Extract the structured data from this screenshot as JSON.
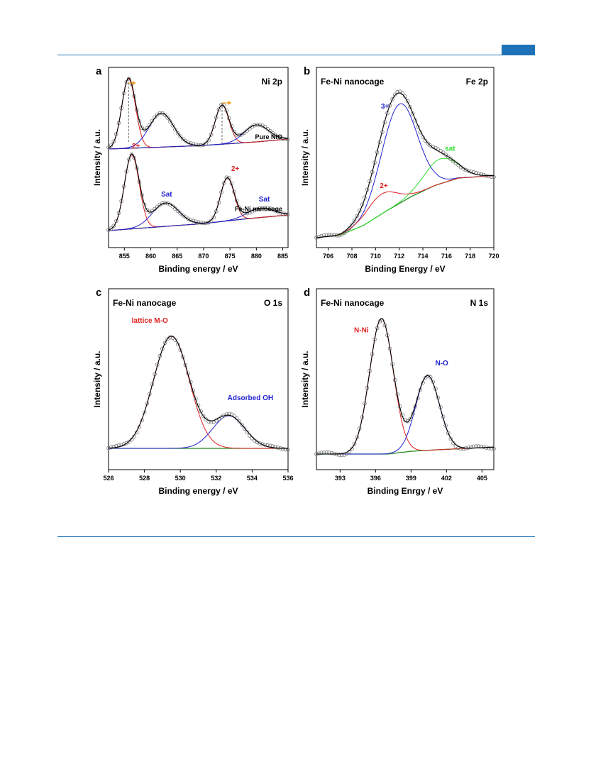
{
  "page": {
    "accent_color": "#1d72b8"
  },
  "chart_data": [
    {
      "panel_letter": "a",
      "type": "line",
      "label_left": "",
      "label_right": "Ni 2p",
      "xlabel": "Binding energy / eV",
      "ylabel": "Intensity / a.u.",
      "xlim": [
        852,
        886
      ],
      "xticks": [
        855,
        860,
        865,
        870,
        875,
        880,
        885
      ],
      "trace_labels": [
        "Fe-Ni nanocage",
        "Pure NiO"
      ],
      "peak_labels": [
        {
          "text": "2+",
          "x": 857.2,
          "trace": 0,
          "color": "#e02020"
        },
        {
          "text": "Sat",
          "x": 863,
          "trace": 0,
          "color": "#2020d0"
        },
        {
          "text": "2+",
          "x": 876,
          "trace": 0,
          "color": "#e02020"
        },
        {
          "text": "Sat",
          "x": 881.5,
          "trace": 0,
          "color": "#2020d0"
        }
      ],
      "reference_lines_ev": [
        855.8,
        873.5
      ],
      "shift_arrows_ev": [
        856.4,
        874.5
      ],
      "colors": {
        "2+": "#e02020",
        "sat": "#2020d0",
        "background": "#1f8a1f",
        "envelope": "#000000",
        "data": "#7a7a7a",
        "shift": "#f0a020"
      },
      "series": [
        {
          "trace": "Fe-Ni nanocage",
          "baseline": [
            {
              "x": 852,
              "y": 0.0
            },
            {
              "x": 860,
              "y": 0.04
            },
            {
              "x": 870,
              "y": 0.09
            },
            {
              "x": 878,
              "y": 0.15
            },
            {
              "x": 886,
              "y": 0.2
            }
          ],
          "peaks": [
            {
              "component": "2+",
              "center": 856.4,
              "height": 0.95,
              "width": 1.4
            },
            {
              "component": "Sat",
              "center": 862.8,
              "height": 0.3,
              "width": 2.5
            },
            {
              "component": "2+",
              "center": 874.5,
              "height": 0.55,
              "width": 1.3
            },
            {
              "component": "Sat",
              "center": 880.8,
              "height": 0.12,
              "width": 2.5
            }
          ]
        },
        {
          "trace": "Pure NiO",
          "baseline": [
            {
              "x": 852,
              "y": 0.0
            },
            {
              "x": 860,
              "y": 0.02
            },
            {
              "x": 870,
              "y": 0.05
            },
            {
              "x": 880,
              "y": 0.1
            },
            {
              "x": 886,
              "y": 0.14
            }
          ],
          "peaks": [
            {
              "component": "2+",
              "center": 855.8,
              "height": 0.98,
              "width": 1.3
            },
            {
              "component": "Sat",
              "center": 862.0,
              "height": 0.48,
              "width": 2.3
            },
            {
              "component": "2+",
              "center": 873.5,
              "height": 0.55,
              "width": 1.3
            },
            {
              "component": "Sat",
              "center": 880.0,
              "height": 0.24,
              "width": 2.3
            }
          ]
        }
      ]
    },
    {
      "panel_letter": "b",
      "type": "line",
      "label_left": "Fe-Ni nanocage",
      "label_right": "Fe 2p",
      "xlabel": "Binding Energy / eV",
      "ylabel": "Intensity / a.u.",
      "xlim": [
        705,
        720
      ],
      "xticks": [
        706,
        708,
        710,
        712,
        714,
        716,
        718,
        720
      ],
      "peak_labels": [
        {
          "text": "3+",
          "x": 710.8,
          "y": 1.04,
          "color": "#2020d0"
        },
        {
          "text": "sat",
          "x": 716.3,
          "y": 0.7,
          "color": "#30e030"
        },
        {
          "text": "2+",
          "x": 710.7,
          "y": 0.4,
          "color": "#e02020"
        }
      ],
      "colors": {
        "3+": "#2020d0",
        "sat": "#30e030",
        "2+": "#e02020",
        "background": "#1f8a1f",
        "envelope": "#000000",
        "data": "#7a7a7a"
      },
      "series": [
        {
          "baseline": [
            {
              "x": 705,
              "y": 0.0
            },
            {
              "x": 707,
              "y": 0.02
            },
            {
              "x": 709,
              "y": 0.1
            },
            {
              "x": 711,
              "y": 0.22
            },
            {
              "x": 713,
              "y": 0.33
            },
            {
              "x": 715,
              "y": 0.42
            },
            {
              "x": 717,
              "y": 0.48
            },
            {
              "x": 720,
              "y": 0.5
            }
          ],
          "peaks": [
            {
              "component": "3+",
              "center": 712.0,
              "height": 0.8,
              "width": 1.5
            },
            {
              "component": "sat",
              "center": 715.5,
              "height": 0.2,
              "width": 1.4
            },
            {
              "component": "2+",
              "center": 710.5,
              "height": 0.16,
              "width": 1.3
            }
          ]
        }
      ]
    },
    {
      "panel_letter": "c",
      "type": "line",
      "label_left": "Fe-Ni nanocage",
      "label_right": "O 1s",
      "xlabel": "Binding energy / eV",
      "ylabel": "Intensity / a.u.",
      "xlim": [
        526,
        536
      ],
      "xticks": [
        526,
        528,
        530,
        532,
        534,
        536
      ],
      "peak_labels": [
        {
          "text": "lattice M-O",
          "x": 528.3,
          "y": 1.04,
          "color": "#e02020"
        },
        {
          "text": "Adsorbed OH",
          "x": 533.9,
          "y": 0.4,
          "color": "#2020d0"
        }
      ],
      "colors": {
        "lattice M-O": "#e02020",
        "Adsorbed OH": "#2020d0",
        "background": "#1f8a1f",
        "envelope": "#000000",
        "data": "#7a7a7a"
      },
      "series": [
        {
          "baseline": [
            {
              "x": 526,
              "y": 0.0
            },
            {
              "x": 536,
              "y": 0.0
            }
          ],
          "peaks": [
            {
              "component": "lattice M-O",
              "center": 529.5,
              "height": 0.93,
              "width": 1.0
            },
            {
              "component": "Adsorbed OH",
              "center": 532.7,
              "height": 0.27,
              "width": 0.9
            }
          ]
        }
      ]
    },
    {
      "panel_letter": "d",
      "type": "line",
      "label_left": "Fe-Ni nanocage",
      "label_right": "N 1s",
      "xlabel": "Binding Enrgy / eV",
      "ylabel": "Intensity / a.u.",
      "xlim": [
        391,
        406
      ],
      "xticks": [
        393,
        396,
        399,
        402,
        405
      ],
      "peak_labels": [
        {
          "text": "N-Ni",
          "x": 394.8,
          "y": 0.88,
          "color": "#e02020"
        },
        {
          "text": "N-O",
          "x": 401.6,
          "y": 0.64,
          "color": "#2020d0"
        }
      ],
      "colors": {
        "N-Ni": "#e02020",
        "N-O": "#2020d0",
        "background": "#1f8a1f",
        "envelope": "#000000",
        "data": "#7a7a7a"
      },
      "series": [
        {
          "baseline": [
            {
              "x": 391,
              "y": 0.0
            },
            {
              "x": 397,
              "y": 0.0
            },
            {
              "x": 399,
              "y": 0.02
            },
            {
              "x": 401,
              "y": 0.03
            },
            {
              "x": 406,
              "y": 0.05
            }
          ],
          "peaks": [
            {
              "component": "N-Ni",
              "center": 396.5,
              "height": 0.98,
              "width": 1.0
            },
            {
              "component": "N-O",
              "center": 400.4,
              "height": 0.54,
              "width": 1.0
            }
          ]
        }
      ]
    }
  ]
}
